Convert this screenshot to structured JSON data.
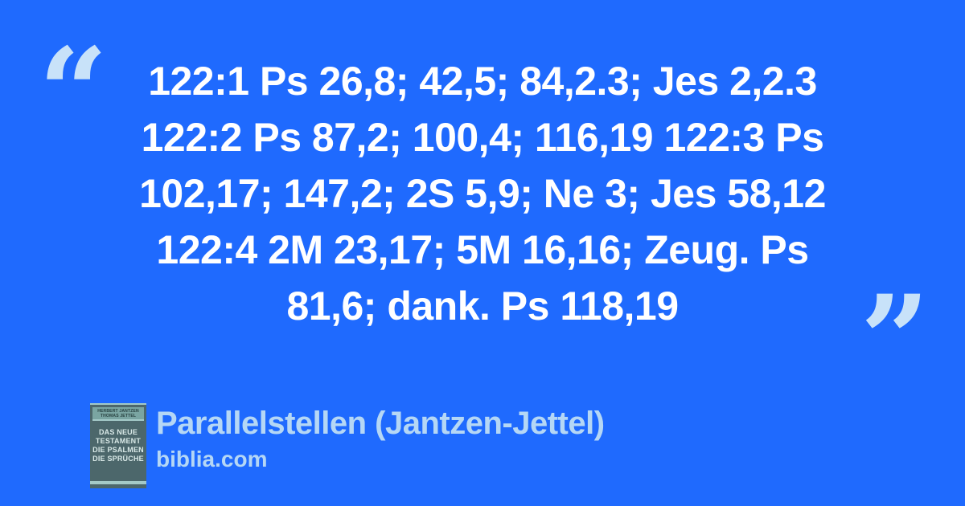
{
  "colors": {
    "background": "#1f6afe",
    "quote_mark": "#c8e2f9",
    "quote_text": "#ffffff",
    "footer_text": "#b5d7f5",
    "cover_background": "#4c676b",
    "cover_stripe": "#a3c9c7",
    "cover_band": "#7aa5a2",
    "cover_band_text": "#27403f",
    "cover_text": "#d9e9e7"
  },
  "quote": {
    "open_mark": "“",
    "close_mark": "”",
    "lines": [
      "122:1 Ps 26,8; 42,5; 84,2.3; Jes 2,2.3",
      "122:2 Ps 87,2; 100,4; 116,19 122:3 Ps",
      "102,17; 147,2; 2S 5,9; Ne 3; Jes 58,12",
      "122:4 2M 23,17; 5M 16,16; Zeug. Ps",
      "81,6; dank. Ps 118,19"
    ],
    "full_text": "122:1 Ps 26,8; 42,5; 84,2.3; Jes 2,2.3 122:2 Ps 87,2; 100,4; 116,19 122:3 Ps 102,17; 147,2; 2S 5,9; Ne 3; Jes 58,12 122:4 2M 23,17; 5M 16,16; Zeug. Ps 81,6; dank. Ps 118,19"
  },
  "footer": {
    "title": "Parallelstellen (Jantzen-Jettel)",
    "site": "biblia.com",
    "book_cover": {
      "author_lines": [
        "HERBERT JANTZEN",
        "THOMAS JETTEL"
      ],
      "title_lines": [
        "DAS NEUE",
        "TESTAMENT",
        "DIE PSALMEN",
        "DIE SPRÜCHE"
      ]
    }
  }
}
